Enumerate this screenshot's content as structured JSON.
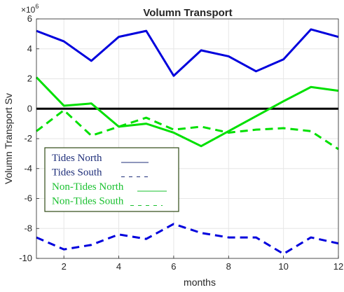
{
  "chart_data": {
    "type": "line",
    "title": "Volumn Transport",
    "xlabel": "months",
    "ylabel": "Volumn Transport Sv",
    "y_exponent_label": "×10",
    "y_exponent_power": "6",
    "xlim": [
      1,
      12
    ],
    "ylim": [
      -10,
      6
    ],
    "x_ticks": [
      2,
      4,
      6,
      8,
      10,
      12
    ],
    "y_ticks": [
      -10,
      -8,
      -6,
      -4,
      -2,
      0,
      2,
      4,
      6
    ],
    "grid": true,
    "legend_position": "lower-left",
    "x": [
      1,
      2,
      3,
      4,
      5,
      6,
      7,
      8,
      9,
      10,
      11,
      12
    ],
    "series": [
      {
        "name": "Tides North",
        "color": "#0000dd",
        "dash": "solid",
        "values": [
          5.2,
          4.5,
          3.2,
          4.8,
          5.2,
          2.2,
          3.9,
          3.5,
          2.5,
          3.3,
          5.3,
          4.8
        ]
      },
      {
        "name": "Tides South",
        "color": "#0000dd",
        "dash": "dashed",
        "values": [
          -8.6,
          -9.4,
          -9.1,
          -8.4,
          -8.7,
          -7.7,
          -8.3,
          -8.6,
          -8.6,
          -9.7,
          -8.6,
          -9.0
        ]
      },
      {
        "name": "Non-Tides North",
        "color": "#00e000",
        "dash": "solid",
        "values": [
          2.1,
          0.2,
          0.35,
          -1.2,
          -1.0,
          -1.6,
          -2.5,
          -1.5,
          -0.5,
          0.5,
          1.45,
          1.2
        ]
      },
      {
        "name": "Non-Tides South",
        "color": "#00e000",
        "dash": "dashed",
        "values": [
          -1.5,
          -0.1,
          -1.8,
          -1.2,
          -0.6,
          -1.4,
          -1.2,
          -1.6,
          -1.4,
          -1.3,
          -1.5,
          -2.7
        ]
      }
    ],
    "zero_line": {
      "value": 0,
      "color": "#000000"
    },
    "legend_text_colors": {
      "Tides North": "#1f2f7a",
      "Tides South": "#1f2f7a",
      "Non-Tides North": "#19c02f",
      "Non-Tides South": "#19c02f"
    },
    "legend_border_color": "#2f4a14"
  }
}
